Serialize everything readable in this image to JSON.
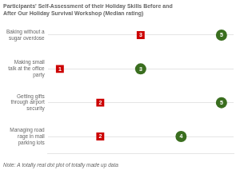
{
  "chart_data": {
    "type": "dot",
    "title": [
      "Participants' Self-Assessment of their Holiday Skills Before and",
      "After Our Holiday Survival Workshop (Median rating)"
    ],
    "subtitle": "Note: A totally real dot plot of totally made up data",
    "categories": [
      "Baking without a\nsugar overdose",
      "Making small\ntalk at the office\nparty",
      "Getting gifts\nthrough airport\nsecurity",
      "Managing road\nrage in mall\nparking lots"
    ],
    "series": [
      {
        "color": "#cc0000",
        "marker": "square",
        "values": [
          3,
          1,
          2,
          2
        ]
      },
      {
        "color": "#3a6e1f",
        "marker": "circle",
        "values": [
          5,
          3,
          5,
          4
        ]
      }
    ],
    "xlim": [
      0.7,
      5.3
    ],
    "grid": true,
    "data_labels": true,
    "tick_labels": "y"
  }
}
